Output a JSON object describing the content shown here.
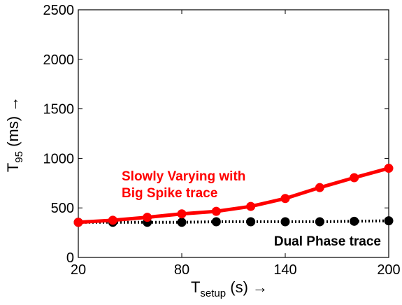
{
  "chart_data": {
    "type": "line",
    "x": [
      20,
      40,
      60,
      80,
      100,
      120,
      140,
      160,
      180,
      200
    ],
    "xlim": [
      20,
      200
    ],
    "ylim": [
      0,
      2500
    ],
    "xticks": [
      "20",
      "80",
      "140",
      "200"
    ],
    "xtick_values": [
      20,
      80,
      140,
      200
    ],
    "yticks": [
      "0",
      "500",
      "1000",
      "1500",
      "2000",
      "2500"
    ],
    "ytick_values": [
      0,
      500,
      1000,
      1500,
      2000,
      2500
    ],
    "xlabel": {
      "main": "T",
      "sub": "setup",
      "rest": " (s) →"
    },
    "ylabel": {
      "main": "T",
      "sub": "95",
      "rest": " (ms) →"
    },
    "grid": false,
    "series": [
      {
        "values": [
          355,
          375,
          405,
          440,
          465,
          515,
          595,
          705,
          805,
          900
        ],
        "color": "#ff0000",
        "line_style": "solid",
        "marker": "circle"
      },
      {
        "values": [
          355,
          355,
          355,
          355,
          360,
          360,
          360,
          360,
          365,
          370
        ],
        "color": "#000000",
        "line_style": "dotted",
        "marker": "circle"
      }
    ],
    "annotations": [
      {
        "lines": [
          "Slowly Varying with",
          "Big Spike trace"
        ],
        "color": "#ff0000"
      },
      {
        "lines": [
          "Dual Phase trace"
        ],
        "color": "#000000"
      }
    ]
  }
}
